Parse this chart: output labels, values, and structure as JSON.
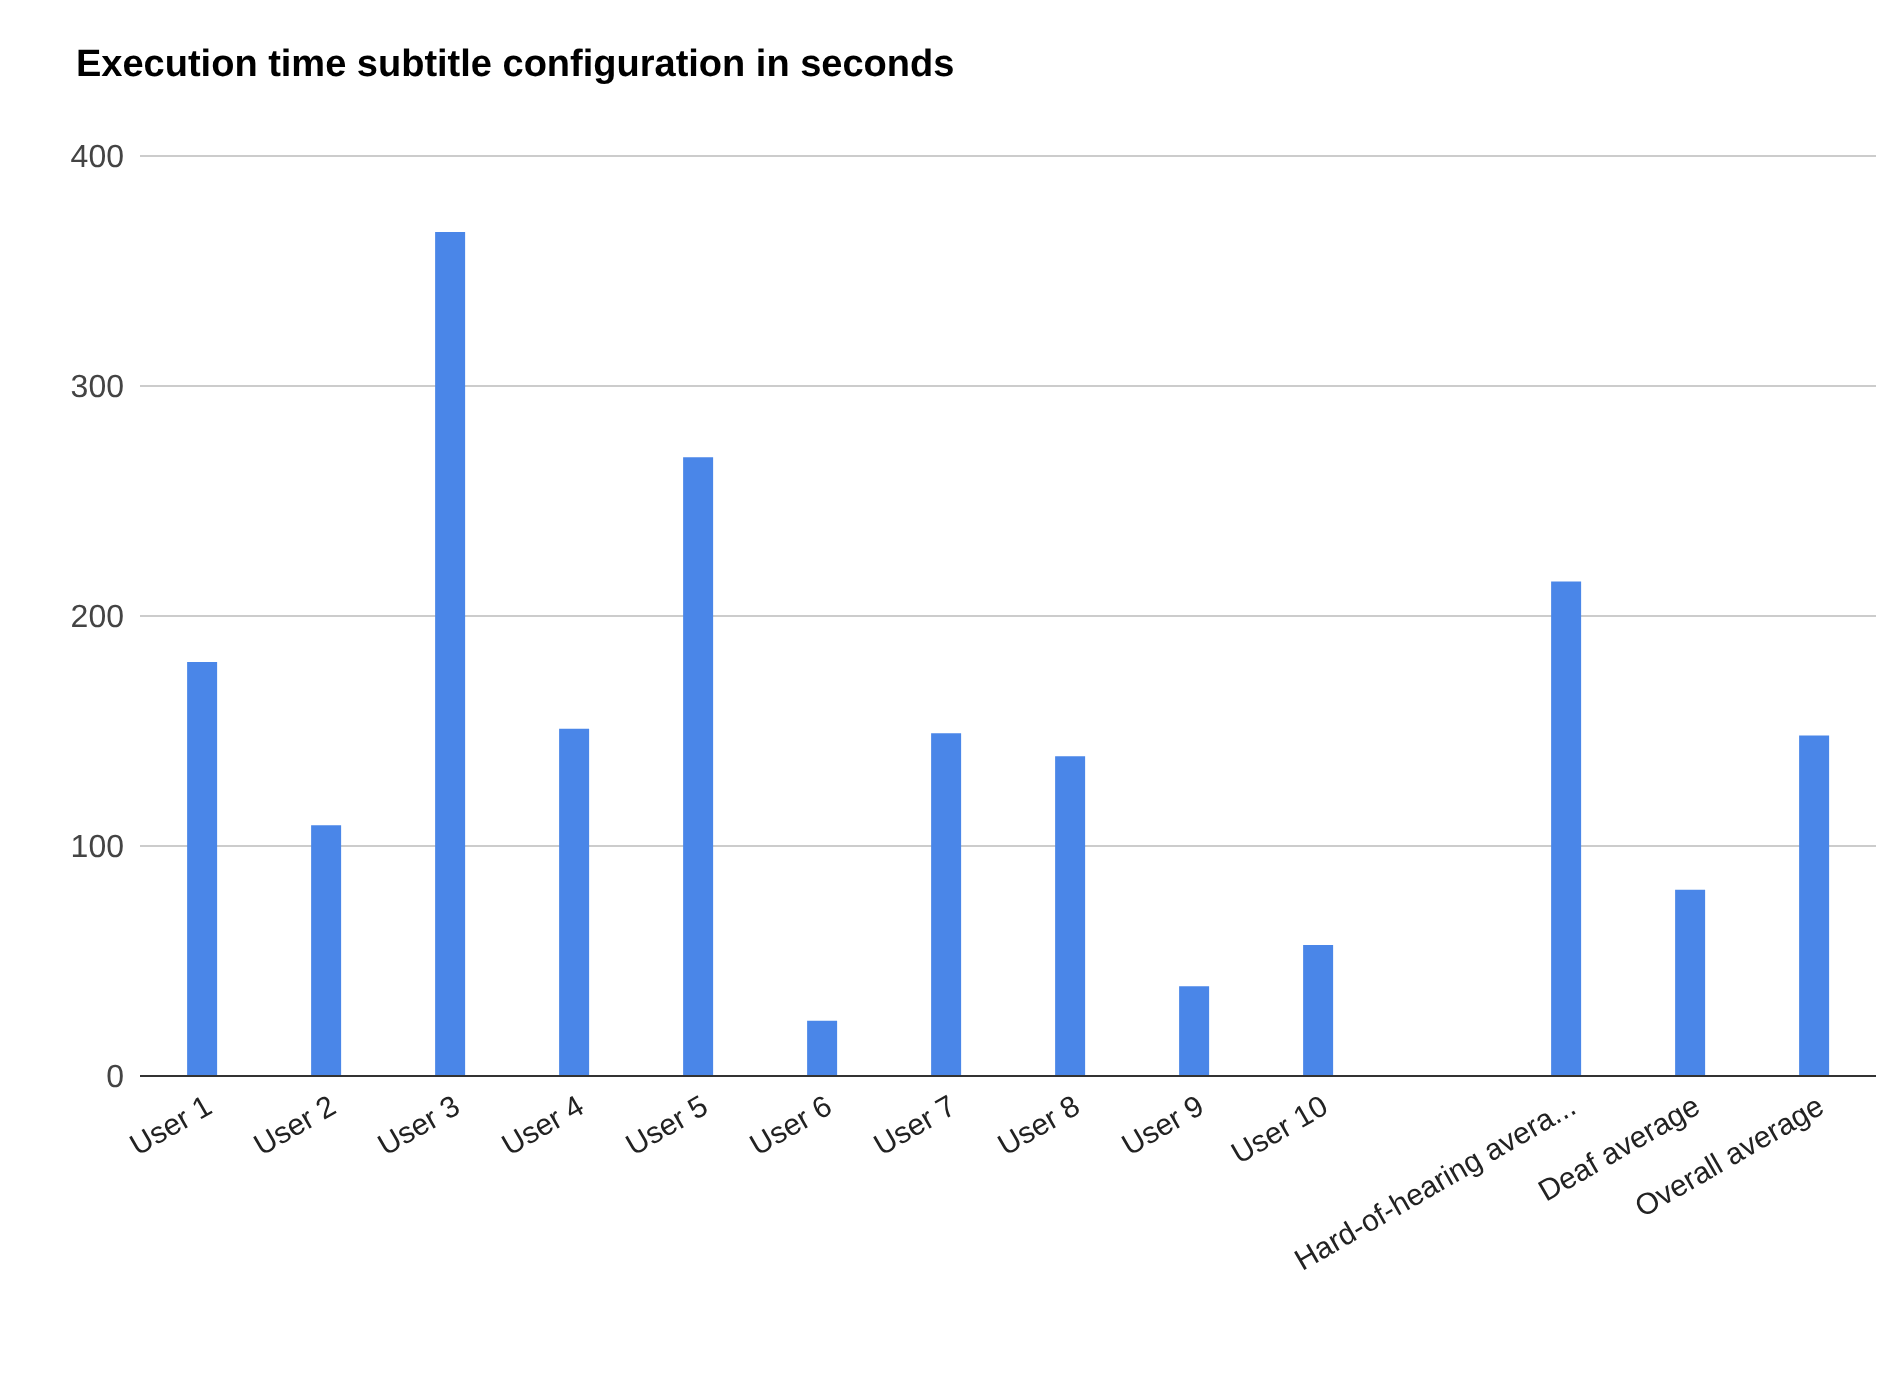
{
  "chart_data": {
    "type": "bar",
    "title": "Execution time subtitle configuration in seconds",
    "categories": [
      "User 1",
      "User 2",
      "User 3",
      "User 4",
      "User 5",
      "User 6",
      "User 7",
      "User 8",
      "User 9",
      "User 10",
      null,
      "Hard-of-hearing avera...",
      "Deaf average",
      "Overall average"
    ],
    "values": [
      180,
      109,
      367,
      151,
      269,
      24,
      149,
      139,
      39,
      57,
      null,
      215,
      81,
      148
    ],
    "color": "#4a86e8",
    "ylim": [
      0,
      400
    ],
    "yticks": [
      0,
      100,
      200,
      300,
      400
    ],
    "grid": "y",
    "legend": false
  }
}
